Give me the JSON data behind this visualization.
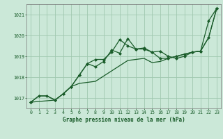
{
  "background_color": "#cbe8d8",
  "plot_bg_color": "#cbe8d8",
  "grid_color": "#a0c8b0",
  "line_color": "#1a5c2a",
  "marker_color": "#1a5c2a",
  "xlabel": "Graphe pression niveau de la mer (hPa)",
  "ylim": [
    1016.5,
    1021.5
  ],
  "xlim": [
    -0.5,
    23.5
  ],
  "yticks": [
    1017,
    1018,
    1019,
    1020,
    1021
  ],
  "xticks": [
    0,
    1,
    2,
    3,
    4,
    5,
    6,
    7,
    8,
    9,
    10,
    11,
    12,
    13,
    14,
    15,
    16,
    17,
    18,
    19,
    20,
    21,
    22,
    23
  ],
  "series": [
    {
      "x": [
        0,
        1,
        2,
        3,
        4,
        5,
        6,
        7,
        8,
        9,
        10,
        11,
        12,
        13,
        14,
        15,
        16,
        17,
        18,
        19,
        20,
        21,
        22,
        23
      ],
      "y": [
        1016.8,
        1017.1,
        1017.1,
        1016.9,
        1017.2,
        1017.55,
        1017.7,
        1017.75,
        1017.8,
        1018.05,
        1018.3,
        1018.55,
        1018.8,
        1018.85,
        1018.9,
        1018.7,
        1018.75,
        1018.9,
        1019.0,
        1019.1,
        1019.2,
        1019.25,
        1019.9,
        1021.3
      ],
      "marker": null,
      "markersize": null,
      "linewidth": 0.9,
      "linestyle": "-"
    },
    {
      "x": [
        0,
        1,
        2,
        3,
        4,
        5,
        6,
        7,
        8,
        9,
        10,
        11,
        12,
        13,
        14,
        15,
        16,
        17,
        18,
        19,
        20,
        21,
        22,
        23
      ],
      "y": [
        1016.8,
        1017.1,
        1017.1,
        1016.9,
        1017.2,
        1017.55,
        1018.1,
        1018.65,
        1018.85,
        1018.85,
        1019.2,
        1019.8,
        1019.5,
        1019.35,
        1019.35,
        1019.2,
        1018.9,
        1018.9,
        1019.0,
        1019.1,
        1019.2,
        1019.25,
        1019.9,
        1021.3
      ],
      "marker": "D",
      "markersize": 2.0,
      "linewidth": 0.9,
      "linestyle": "-"
    },
    {
      "x": [
        0,
        3,
        4,
        5,
        6,
        7,
        8,
        9,
        10,
        11,
        12,
        13,
        14,
        15,
        16,
        17,
        18,
        19,
        20,
        21,
        22,
        23
      ],
      "y": [
        1016.8,
        1016.9,
        1017.2,
        1017.55,
        1018.1,
        1018.65,
        1018.5,
        1018.75,
        1019.3,
        1019.15,
        1019.85,
        1019.35,
        1019.4,
        1019.2,
        1019.25,
        1019.0,
        1018.9,
        1019.0,
        1019.2,
        1019.25,
        1020.7,
        1021.3
      ],
      "marker": "D",
      "markersize": 2.0,
      "linewidth": 0.9,
      "linestyle": "-"
    }
  ],
  "xlabel_fontsize": 5.5,
  "tick_fontsize": 4.8,
  "xlabel_fontweight": "bold"
}
